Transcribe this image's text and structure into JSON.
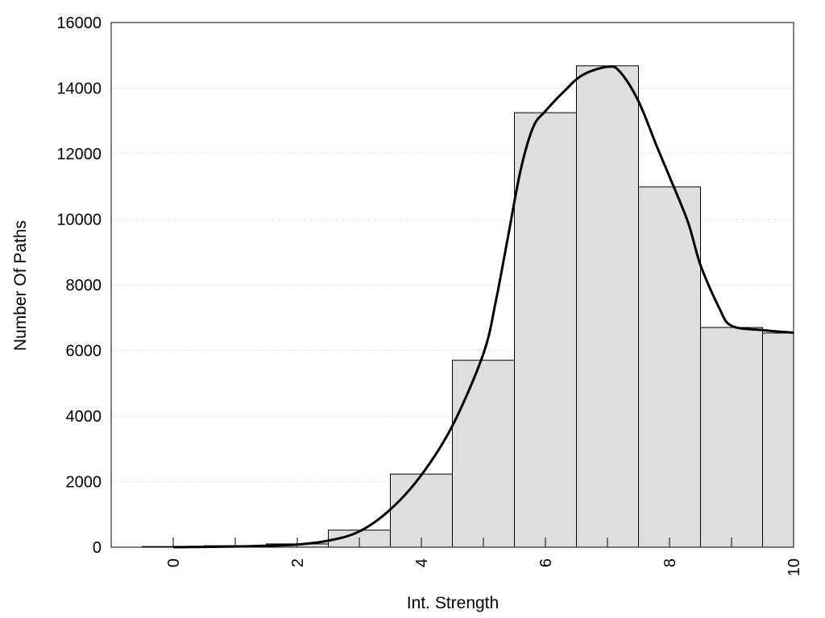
{
  "chart_data": {
    "type": "bar",
    "xlabel": "Int. Strength",
    "ylabel": "Number Of Paths",
    "xlim": [
      -1,
      10
    ],
    "ylim": [
      0,
      16000
    ],
    "x_ticks": [
      "0",
      "2",
      "4",
      "6",
      "8",
      "10"
    ],
    "y_ticks": [
      "0",
      "2000",
      "4000",
      "6000",
      "8000",
      "10000",
      "12000",
      "14000",
      "16000"
    ],
    "grid": "horizontal-dotted",
    "bins": [
      {
        "x": 0,
        "value": 20
      },
      {
        "x": 1,
        "value": 45
      },
      {
        "x": 2,
        "value": 100
      },
      {
        "x": 3,
        "value": 520
      },
      {
        "x": 4,
        "value": 2230
      },
      {
        "x": 5,
        "value": 5700
      },
      {
        "x": 6,
        "value": 13250
      },
      {
        "x": 7,
        "value": 14680
      },
      {
        "x": 8,
        "value": 10990
      },
      {
        "x": 9,
        "value": 6700
      },
      {
        "x": 10,
        "value": 6530
      }
    ],
    "bin_width": 1,
    "bar_color": "#dedede",
    "curve": {
      "color": "#000000",
      "points": [
        [
          0,
          0
        ],
        [
          1,
          20
        ],
        [
          1.5,
          45
        ],
        [
          2,
          80
        ],
        [
          2.5,
          200
        ],
        [
          3,
          480
        ],
        [
          3.5,
          1150
        ],
        [
          4,
          2200
        ],
        [
          4.5,
          3700
        ],
        [
          5,
          5900
        ],
        [
          5.2,
          7500
        ],
        [
          5.4,
          9500
        ],
        [
          5.6,
          11500
        ],
        [
          5.8,
          12800
        ],
        [
          6,
          13300
        ],
        [
          6.3,
          13900
        ],
        [
          6.6,
          14400
        ],
        [
          7,
          14650
        ],
        [
          7.2,
          14500
        ],
        [
          7.5,
          13600
        ],
        [
          7.8,
          12200
        ],
        [
          8,
          11300
        ],
        [
          8.3,
          9900
        ],
        [
          8.5,
          8600
        ],
        [
          8.8,
          7300
        ],
        [
          9,
          6750
        ],
        [
          9.5,
          6620
        ],
        [
          10,
          6540
        ]
      ]
    }
  }
}
